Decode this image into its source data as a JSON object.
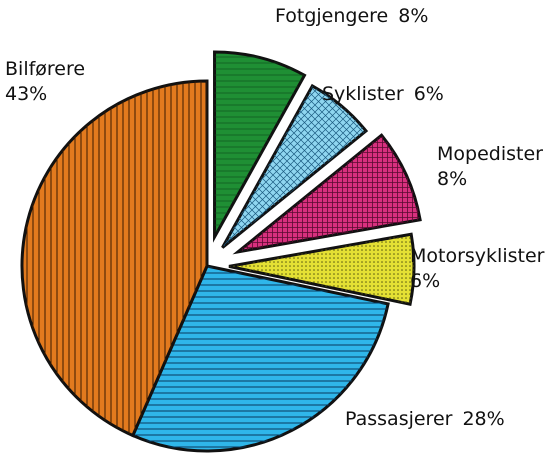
{
  "chart_data": {
    "type": "pie",
    "categories": [
      "Fotgjengere",
      "Syklister",
      "Mopedister",
      "Motorsyklister",
      "Passasjerer",
      "Bilførere"
    ],
    "values": [
      8,
      6,
      8,
      6,
      28,
      43
    ],
    "value_labels": [
      "8%",
      "6%",
      "8%",
      "6%",
      "28%",
      "43%"
    ],
    "colors": [
      "#1f8f34",
      "#8fd6f0",
      "#d8307e",
      "#e4e034",
      "#2fb6ea",
      "#e27a1e"
    ]
  }
}
